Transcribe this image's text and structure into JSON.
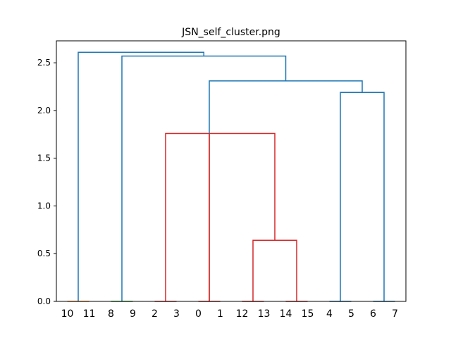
{
  "chart_data": {
    "type": "dendrogram",
    "title": "JSN_self_cluster.png",
    "xlabel": "",
    "ylabel": "",
    "ylim": [
      0,
      2.73
    ],
    "grid": false,
    "legend": "none",
    "leaf_order": [
      "10",
      "11",
      "8",
      "9",
      "2",
      "3",
      "0",
      "1",
      "12",
      "13",
      "14",
      "15",
      "4",
      "5",
      "6",
      "7"
    ],
    "yticks": [
      {
        "value": 0.0,
        "label": "0.0"
      },
      {
        "value": 0.5,
        "label": "0.5"
      },
      {
        "value": 1.0,
        "label": "1.0"
      },
      {
        "value": 1.5,
        "label": "1.5"
      },
      {
        "value": 2.0,
        "label": "2.0"
      },
      {
        "value": 2.5,
        "label": "2.5"
      }
    ],
    "colors": {
      "leaf_pair_1": "#ff7f0e",
      "leaf_pair_2": "#2ca02c",
      "cluster": "#d62728",
      "above_threshold": "#1f77b4"
    },
    "links": [
      {
        "name": "link-10-11",
        "x": [
          0,
          0,
          1,
          1
        ],
        "y": [
          0,
          0,
          0,
          0
        ],
        "color": "#ff7f0e"
      },
      {
        "name": "link-8-9",
        "x": [
          2,
          2,
          3,
          3
        ],
        "y": [
          0,
          0,
          0,
          0
        ],
        "color": "#2ca02c"
      },
      {
        "name": "link-2-3",
        "x": [
          4,
          4,
          5,
          5
        ],
        "y": [
          0,
          0,
          0,
          0
        ],
        "color": "#d62728"
      },
      {
        "name": "link-0-1",
        "x": [
          6,
          6,
          7,
          7
        ],
        "y": [
          0,
          0,
          0,
          0
        ],
        "color": "#d62728"
      },
      {
        "name": "link-12-13",
        "x": [
          8,
          8,
          9,
          9
        ],
        "y": [
          0,
          0,
          0,
          0
        ],
        "color": "#d62728"
      },
      {
        "name": "link-14-15",
        "x": [
          10,
          10,
          11,
          11
        ],
        "y": [
          0,
          0,
          0,
          0
        ],
        "color": "#d62728"
      },
      {
        "name": "link-4-5",
        "x": [
          12,
          12,
          13,
          13
        ],
        "y": [
          0,
          0,
          0,
          0
        ],
        "color": "#1f77b4"
      },
      {
        "name": "link-6-7",
        "x": [
          14,
          14,
          15,
          15
        ],
        "y": [
          0,
          0,
          0,
          0
        ],
        "color": "#1f77b4"
      },
      {
        "name": "link-1213-1415",
        "x": [
          8.5,
          8.5,
          10.5,
          10.5
        ],
        "y": [
          0,
          0.64,
          0.64,
          0
        ],
        "color": "#d62728"
      },
      {
        "name": "link-01-cluster",
        "x": [
          6.5,
          6.5,
          9.5,
          9.5
        ],
        "y": [
          0,
          1.76,
          1.76,
          0.64
        ],
        "color": "#d62728"
      },
      {
        "name": "link-23-cluster",
        "x": [
          4.5,
          4.5,
          6.5,
          6.5
        ],
        "y": [
          0,
          1.76,
          1.76,
          0
        ],
        "color": "#d62728"
      },
      {
        "name": "link-45-67",
        "x": [
          12.5,
          12.5,
          14.5,
          14.5
        ],
        "y": [
          0,
          2.19,
          2.19,
          0
        ],
        "color": "#1f77b4"
      },
      {
        "name": "link-red-4567",
        "x": [
          6.5,
          6.5,
          13.5,
          13.5
        ],
        "y": [
          1.76,
          2.31,
          2.31,
          2.19
        ],
        "color": "#1f77b4"
      },
      {
        "name": "link-89-rest",
        "x": [
          2.5,
          2.5,
          10,
          10
        ],
        "y": [
          0,
          2.57,
          2.57,
          2.31
        ],
        "color": "#1f77b4"
      },
      {
        "name": "link-root",
        "x": [
          0.5,
          0.5,
          6.25,
          6.25
        ],
        "y": [
          0,
          2.61,
          2.61,
          2.57
        ],
        "color": "#1f77b4"
      }
    ]
  }
}
